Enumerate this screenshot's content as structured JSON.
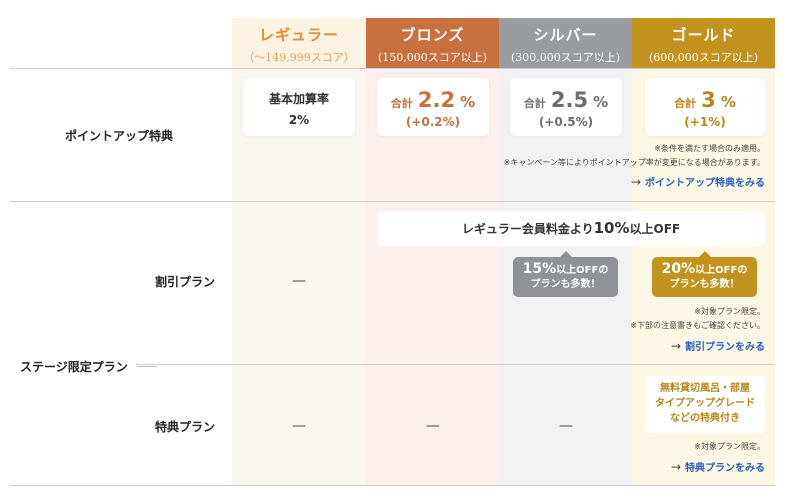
{
  "tiers": [
    {
      "name": "レギュラー",
      "range": "（〜149,999スコア）"
    },
    {
      "name": "ブロンズ",
      "range": "(150,000スコア以上)"
    },
    {
      "name": "シルバー",
      "range": "(300,000スコア以上)"
    },
    {
      "name": "ゴールド",
      "range": "(600,000スコア以上)"
    }
  ],
  "points": {
    "label": "ポイントアップ特典",
    "regular": {
      "line1": "基本加算率",
      "line2": "2%"
    },
    "bronze": {
      "prefix": "合計",
      "value": "2.2",
      "unit": "%",
      "sub": "(+0.2%)"
    },
    "silver": {
      "prefix": "合計",
      "value": "2.5",
      "unit": "%",
      "sub": "(+0.5%)"
    },
    "gold": {
      "prefix": "合計",
      "value": "3",
      "unit": "%",
      "sub": "(+1%)"
    },
    "note1": "※条件を満たす場合のみ適用。",
    "note2": "※キャンペーン等によりポイントアップ率が変更になる場合があります。",
    "link": "ポイントアップ特典をみる"
  },
  "discount": {
    "label": "割引プラン",
    "regular": "—",
    "bar_prefix": "レギュラー会員料金より",
    "bar_num": "10%",
    "bar_suffix": "以上OFF",
    "silver_num": "15%",
    "silver_text1": "以上OFFの",
    "silver_text2": "プランも多数！",
    "gold_num": "20%",
    "gold_text1": "以上OFFの",
    "gold_text2": "プランも多数！",
    "note1": "※対象プラン限定。",
    "note2": "※下部の注意書きもご確認ください。",
    "link": "割引プランをみる"
  },
  "stage_label": "ステージ限定プラン",
  "benefit": {
    "label": "特典プラン",
    "regular": "—",
    "bronze": "—",
    "silver": "—",
    "gold_line1": "無料貸切風呂・部屋",
    "gold_line2": "タイプアップグレード",
    "gold_line3": "などの特典付き",
    "note1": "※対象プラン限定。",
    "link": "特典プランをみる"
  },
  "icons": {
    "link_arrow": "→"
  },
  "colors": {
    "regular": "#e98a2a",
    "bronze": "#c8713f",
    "silver": "#999da2",
    "gold": "#c39320",
    "link": "#2a5fbf"
  }
}
